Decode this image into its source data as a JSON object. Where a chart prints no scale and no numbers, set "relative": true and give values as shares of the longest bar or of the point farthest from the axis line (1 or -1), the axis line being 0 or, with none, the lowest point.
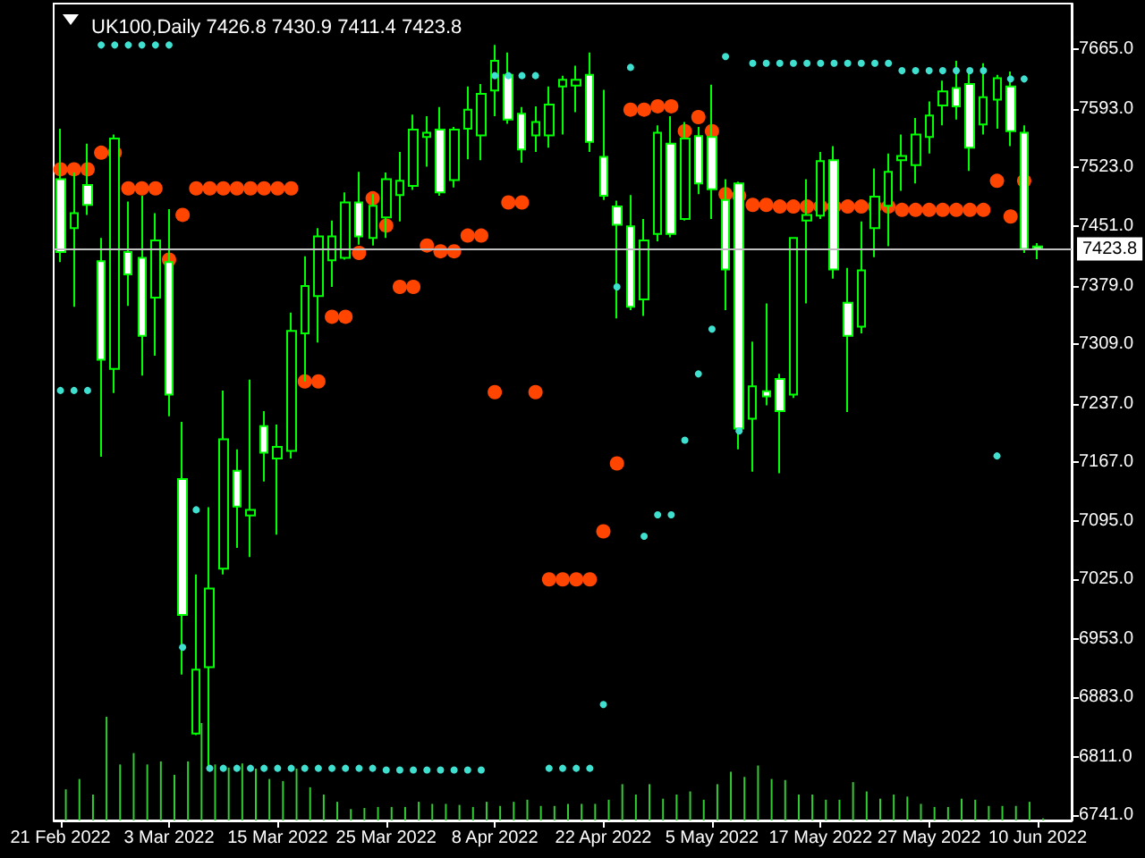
{
  "chart_data": [
    {
      "type": "candlestick",
      "title": "UK100,Daily 7426.8 7430.9 7411.4 7423.8",
      "categories": [
        "21 Feb 2022",
        null,
        null,
        null,
        null,
        null,
        null,
        null,
        "3 Mar 2022",
        null,
        null,
        null,
        null,
        null,
        null,
        null,
        "15 Mar 2022",
        null,
        null,
        null,
        null,
        null,
        null,
        null,
        "25 Mar 2022",
        null,
        null,
        null,
        null,
        null,
        null,
        null,
        "8 Apr 2022",
        null,
        null,
        null,
        null,
        null,
        null,
        null,
        "22 Apr 2022",
        null,
        null,
        null,
        null,
        null,
        null,
        null,
        "5 May 2022",
        null,
        null,
        null,
        null,
        null,
        null,
        null,
        "17 May 2022",
        null,
        null,
        null,
        null,
        null,
        null,
        null,
        "27 May 2022",
        null,
        null,
        null,
        null,
        null,
        null,
        null,
        "10 Jun 2022"
      ],
      "ohlc": [
        [
          7508,
          7569,
          7408,
          7420
        ],
        [
          7449,
          7516,
          7354,
          7467
        ],
        [
          7501,
          7551,
          7465,
          7477
        ],
        [
          7409,
          7437,
          7173,
          7290
        ],
        [
          7279,
          7562,
          7250,
          7557
        ],
        [
          7420,
          7481,
          7355,
          7393
        ],
        [
          7413,
          7488,
          7271,
          7319
        ],
        [
          7365,
          7467,
          7295,
          7434
        ],
        [
          7408,
          7472,
          7222,
          7248
        ],
        [
          7146,
          7215,
          6910,
          6982
        ],
        [
          6839,
          7031,
          6837,
          6916
        ],
        [
          6919,
          7112,
          6797,
          7014
        ],
        [
          7038,
          7253,
          7031,
          7194
        ],
        [
          7156,
          7182,
          7063,
          7113
        ],
        [
          7102,
          7266,
          7052,
          7109
        ],
        [
          7210,
          7228,
          7143,
          7178
        ],
        [
          7171,
          7212,
          7079,
          7185
        ],
        [
          7180,
          7347,
          7171,
          7325
        ],
        [
          7322,
          7415,
          7264,
          7379
        ],
        [
          7367,
          7449,
          7311,
          7439
        ],
        [
          7410,
          7458,
          7378,
          7439
        ],
        [
          7413,
          7492,
          7411,
          7480
        ],
        [
          7480,
          7517,
          7429,
          7439
        ],
        [
          7437,
          7490,
          7428,
          7476
        ],
        [
          7462,
          7516,
          7437,
          7508
        ],
        [
          7489,
          7541,
          7457,
          7506
        ],
        [
          7500,
          7586,
          7495,
          7568
        ],
        [
          7559,
          7584,
          7523,
          7564
        ],
        [
          7568,
          7595,
          7488,
          7492
        ],
        [
          7507,
          7571,
          7498,
          7568
        ],
        [
          7569,
          7620,
          7532,
          7592
        ],
        [
          7561,
          7623,
          7531,
          7611
        ],
        [
          7615,
          7670,
          7584,
          7651
        ],
        [
          7634,
          7661,
          7575,
          7580
        ],
        [
          7587,
          7595,
          7528,
          7544
        ],
        [
          7561,
          7596,
          7541,
          7577
        ],
        [
          7561,
          7620,
          7546,
          7598
        ],
        [
          7620,
          7633,
          7562,
          7628
        ],
        [
          7621,
          7645,
          7589,
          7628
        ],
        [
          7634,
          7661,
          7541,
          7553
        ],
        [
          7535,
          7616,
          7483,
          7488
        ],
        [
          7475,
          7482,
          7340,
          7453
        ],
        [
          7451,
          7489,
          7350,
          7354
        ],
        [
          7363,
          7460,
          7343,
          7434
        ],
        [
          7442,
          7573,
          7433,
          7564
        ],
        [
          7551,
          7584,
          7438,
          7442
        ],
        [
          7460,
          7577,
          7458,
          7557
        ],
        [
          7560,
          7571,
          7490,
          7503
        ],
        [
          7559,
          7622,
          7460,
          7496
        ],
        [
          7483,
          7508,
          7350,
          7399
        ],
        [
          7503,
          7505,
          7182,
          7207
        ],
        [
          7219,
          7312,
          7155,
          7258
        ],
        [
          7252,
          7358,
          7235,
          7246
        ],
        [
          7267,
          7273,
          7153,
          7228
        ],
        [
          7248,
          7438,
          7244,
          7437
        ],
        [
          7458,
          7508,
          7358,
          7465
        ],
        [
          7464,
          7541,
          7460,
          7530
        ],
        [
          7531,
          7548,
          7388,
          7399
        ],
        [
          7359,
          7401,
          7227,
          7319
        ],
        [
          7330,
          7457,
          7322,
          7398
        ],
        [
          7449,
          7521,
          7414,
          7487
        ],
        [
          7476,
          7539,
          7427,
          7517
        ],
        [
          7531,
          7562,
          7494,
          7536
        ],
        [
          7525,
          7582,
          7503,
          7562
        ],
        [
          7559,
          7602,
          7539,
          7585
        ],
        [
          7597,
          7627,
          7573,
          7614
        ],
        [
          7618,
          7651,
          7580,
          7596
        ],
        [
          7623,
          7639,
          7518,
          7546
        ],
        [
          7574,
          7648,
          7562,
          7607
        ],
        [
          7604,
          7634,
          7569,
          7630
        ],
        [
          7620,
          7638,
          7548,
          7566
        ],
        [
          7564,
          7573,
          7419,
          7424
        ],
        [
          7426.8,
          7430.9,
          7411.4,
          7423.8
        ]
      ],
      "color": "#00ff00",
      "colors": [
        "#ffffff",
        "#000000",
        "#ffffff",
        "#ffffff",
        "#000000",
        "#ffffff",
        "#ffffff",
        "#000000",
        "#ffffff",
        "#ffffff",
        "#000000",
        "#000000",
        "#000000",
        "#ffffff",
        "#000000",
        "#ffffff",
        "#000000",
        "#000000",
        "#000000",
        "#000000",
        "#000000",
        "#000000",
        "#ffffff",
        "#000000",
        "#000000",
        "#000000",
        "#000000",
        "#000000",
        "#ffffff",
        "#000000",
        "#000000",
        "#000000",
        "#000000",
        "#ffffff",
        "#ffffff",
        "#000000",
        "#000000",
        "#000000",
        "#000000",
        "#ffffff",
        "#ffffff",
        "#ffffff",
        "#ffffff",
        "#000000",
        "#000000",
        "#ffffff",
        "#000000",
        "#ffffff",
        "#ffffff",
        "#ffffff",
        "#ffffff",
        "#000000",
        "#ffffff",
        "#ffffff",
        "#000000",
        "#000000",
        "#000000",
        "#ffffff",
        "#ffffff",
        "#000000",
        "#000000",
        "#000000",
        "#000000",
        "#000000",
        "#000000",
        "#000000",
        "#ffffff",
        "#ffffff",
        "#000000",
        "#000000",
        "#ffffff",
        "#ffffff",
        "#ffffff"
      ],
      "series": [
        {
          "type": "scatter",
          "color": "#ff4500",
          "values": [
            7520,
            7520,
            7520,
            7540,
            7540,
            7497,
            7497,
            7497,
            7411,
            7465,
            7497,
            7497,
            7497,
            7497,
            7497,
            7497,
            7497,
            7497,
            7264,
            7264,
            7342,
            7342,
            7419,
            7485,
            7452,
            7378,
            7378,
            7428,
            7421,
            7421,
            7440,
            7440,
            7251,
            7480,
            7480,
            7251,
            7025,
            7025,
            7025,
            7025,
            7083,
            7165,
            7592,
            7592,
            7596,
            7596,
            7566,
            7583,
            7566,
            7490,
            7488,
            7477,
            7477,
            7475,
            7475,
            7475,
            7475,
            7475,
            7475,
            7475,
            7475,
            7475,
            7471,
            7471,
            7471,
            7471,
            7471,
            7471,
            7471,
            7506,
            7463,
            7506,
            null
          ]
        },
        {
          "type": "scatter",
          "color": "#40e0d0",
          "values": [
            7253,
            7253,
            7253,
            7670,
            7670,
            7670,
            7670,
            7670,
            7670,
            6943,
            7109,
            6797,
            6797,
            6797,
            6797,
            6797,
            6797,
            6797,
            6797,
            6797,
            6797,
            6797,
            6797,
            6797,
            6795,
            6795,
            6795,
            6795,
            6795,
            6795,
            6795,
            6795,
            7633,
            7633,
            7633,
            7633,
            6797,
            6797,
            6797,
            6797,
            6874,
            7378,
            7643,
            7077,
            7103,
            7103,
            7193,
            7273,
            7327,
            7656,
            7204,
            7648,
            7648,
            7648,
            7648,
            7648,
            7648,
            7648,
            7648,
            7648,
            7648,
            7648,
            7639,
            7639,
            7639,
            7639,
            7639,
            7639,
            7639,
            7174,
            7629,
            7629,
            null
          ]
        }
      ],
      "marker": "circle",
      "ylim": [
        6734,
        7720
      ],
      "yticks": [
        {
          "value": 7665,
          "label": "7665.0"
        },
        {
          "value": 7593,
          "label": "7593.0"
        },
        {
          "value": 7523,
          "label": "7523.0"
        },
        {
          "value": 7451,
          "label": "7451.0"
        },
        {
          "value": 7379,
          "label": "7379.0"
        },
        {
          "value": 7309,
          "label": "7309.0"
        },
        {
          "value": 7237,
          "label": "7237.0"
        },
        {
          "value": 7167,
          "label": "7167.0"
        },
        {
          "value": 7095,
          "label": "7095.0"
        },
        {
          "value": 7025,
          "label": "7025.0"
        },
        {
          "value": 6953,
          "label": "6953.0"
        },
        {
          "value": 6883,
          "label": "6883.0"
        },
        {
          "value": 6811,
          "label": "6811.0"
        },
        {
          "value": 6741,
          "label": "6741.0"
        }
      ],
      "ref_lines": [
        {
          "axis": "y",
          "value": 7423.8,
          "label": "7423.8",
          "color": "#c0c0c0"
        }
      ]
    },
    {
      "type": "bar",
      "relative": true,
      "color": "#32cd32",
      "categories": [
        null,
        null,
        null,
        null,
        null,
        null,
        null,
        null,
        null,
        null,
        null,
        null,
        null,
        null,
        null,
        null,
        null,
        null,
        null,
        null,
        null,
        null,
        null,
        null,
        null,
        null,
        null,
        null,
        null,
        null,
        null,
        null,
        null,
        null,
        null,
        null,
        null,
        null,
        null,
        null,
        null,
        null,
        null,
        null,
        null,
        null,
        null,
        null,
        null,
        null,
        null,
        null,
        null,
        null,
        null,
        null,
        null,
        null,
        null,
        null,
        null,
        null,
        null,
        null,
        null,
        null,
        null,
        null,
        null,
        null,
        null,
        null,
        null
      ],
      "values": [
        0.3,
        0.4,
        0.25,
        1,
        0.54,
        0.65,
        0.54,
        0.57,
        0.44,
        0.57,
        0.94,
        0.54,
        0.51,
        0.55,
        0.5,
        0.4,
        0.38,
        0.5,
        0.32,
        0.25,
        0.18,
        0.11,
        0.12,
        0.13,
        0.13,
        0.13,
        0.18,
        0.16,
        0.16,
        0.15,
        0.13,
        0.18,
        0.14,
        0.18,
        0.2,
        0.14,
        0.14,
        0.16,
        0.16,
        0.16,
        0.2,
        0.35,
        0.25,
        0.35,
        0.21,
        0.25,
        0.28,
        0.2,
        0.35,
        0.47,
        0.42,
        0.53,
        0.4,
        0.39,
        0.25,
        0.25,
        0.2,
        0.2,
        0.37,
        0.28,
        0.21,
        0.25,
        0.23,
        0.16,
        0.13,
        0.13,
        0.21,
        0.2,
        0.14,
        0.14,
        0.14,
        0.18,
        0.02
      ]
    }
  ]
}
